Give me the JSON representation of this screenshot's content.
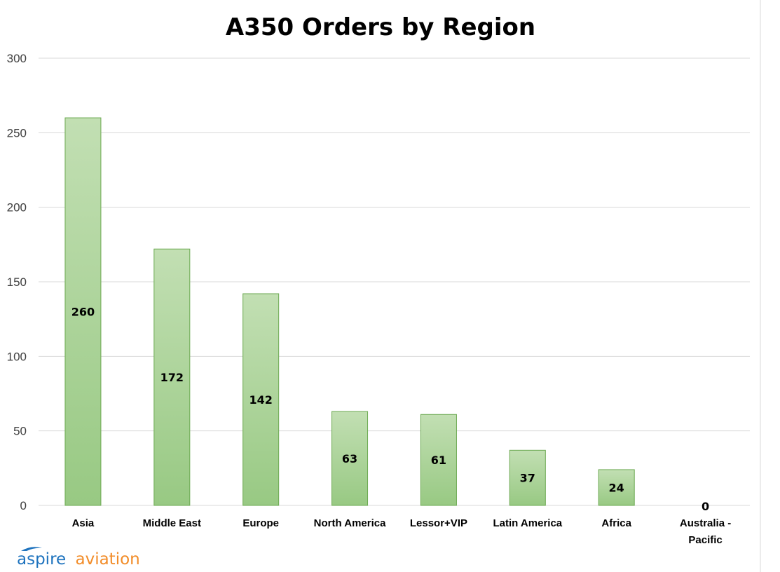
{
  "chart_data": {
    "type": "bar",
    "title": "A350 Orders by Region",
    "xlabel": "",
    "ylabel": "",
    "categories": [
      "Asia",
      "Middle East",
      "Europe",
      "North America",
      "Lessor+VIP",
      "Latin America",
      "Africa",
      "Australia - Pacific"
    ],
    "values": [
      260,
      172,
      142,
      63,
      61,
      37,
      24,
      0
    ],
    "ylim": [
      0,
      300
    ],
    "yticks": [
      0,
      50,
      100,
      150,
      200,
      250,
      300
    ],
    "grid": true,
    "legend": "none",
    "data_labels": true,
    "bar_color_top": "#c2dfb3",
    "bar_color_bottom": "#98c983",
    "bar_border": "#6aa84f"
  },
  "logo": {
    "part1": "aspire",
    "part2": "aviation",
    "color1": "#1e73be",
    "color2": "#f28c28"
  }
}
